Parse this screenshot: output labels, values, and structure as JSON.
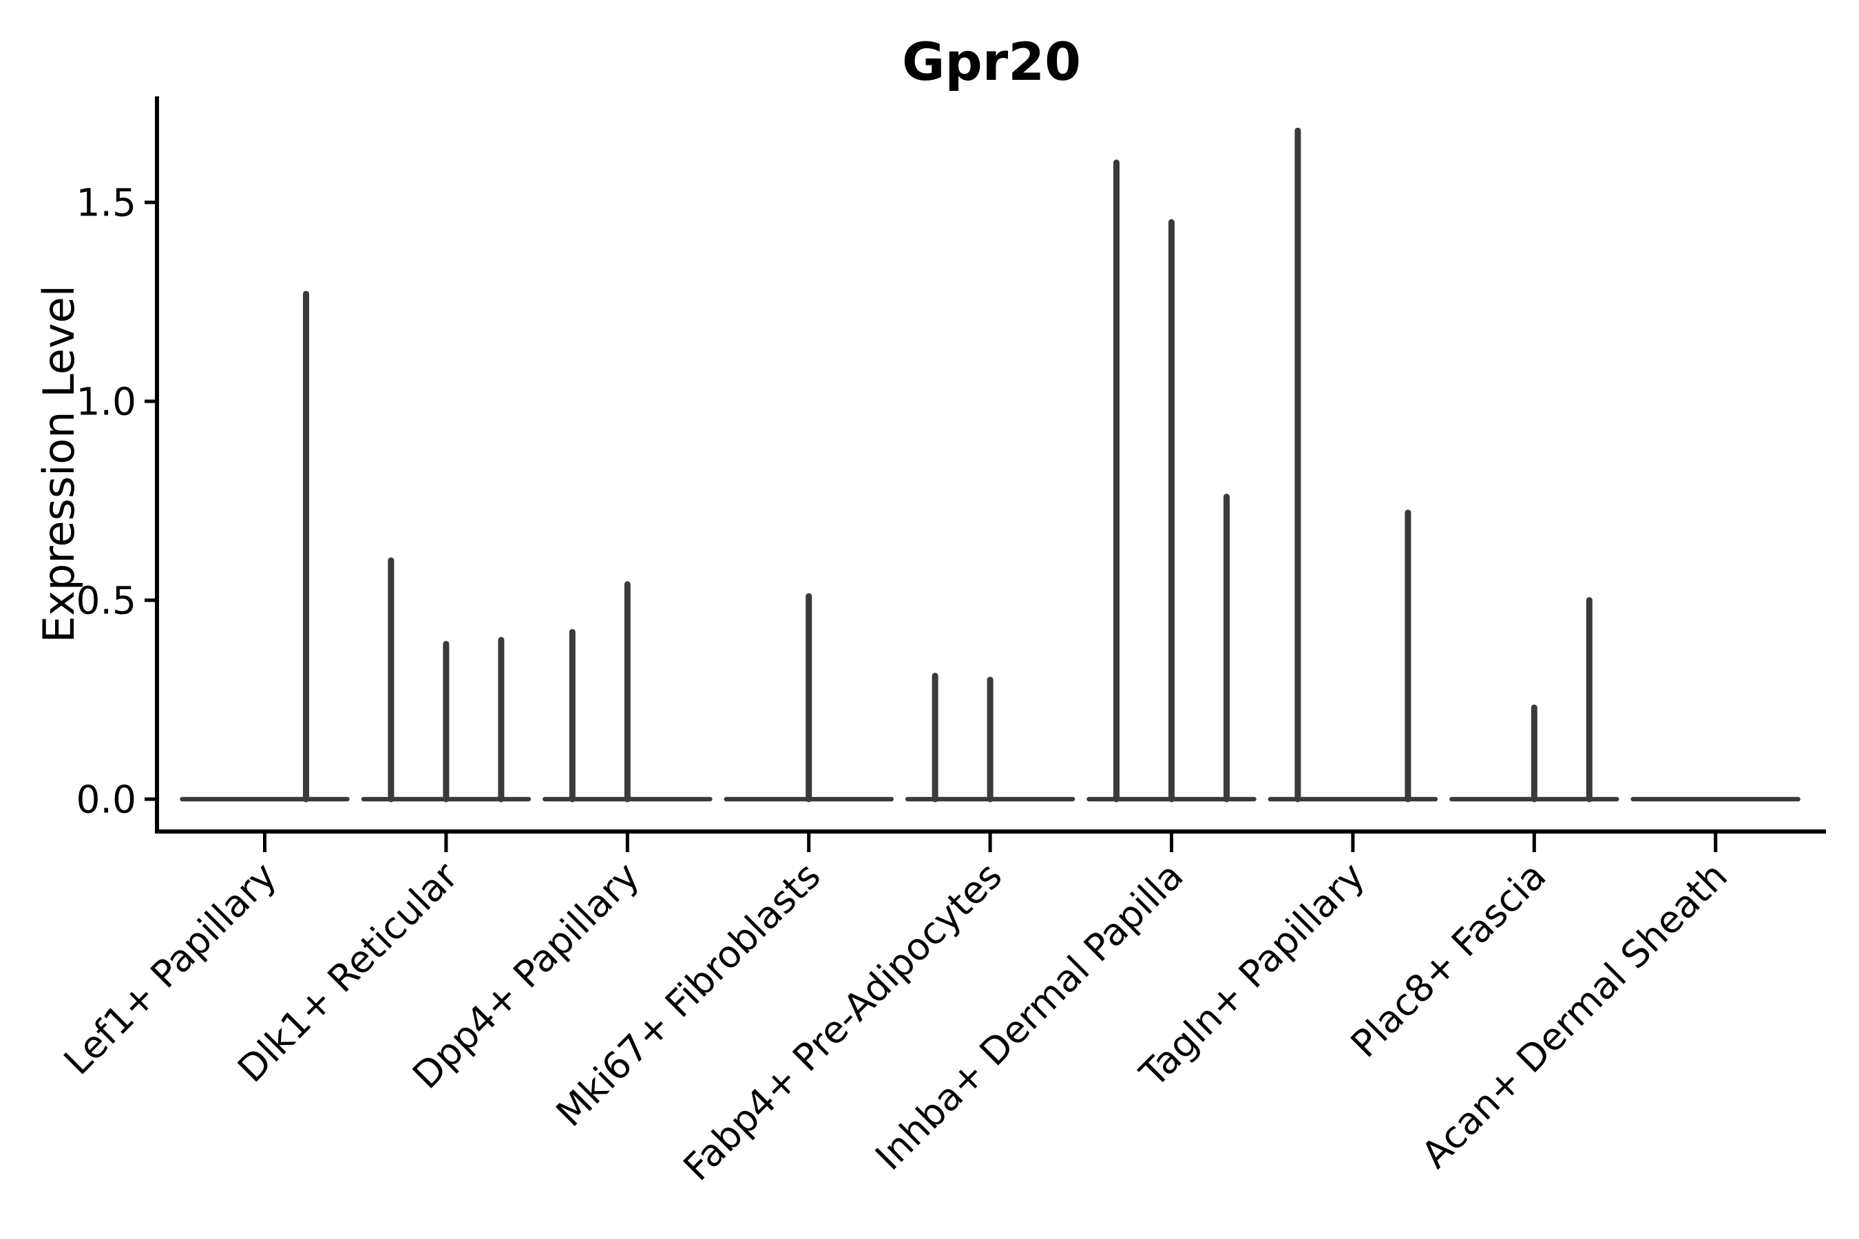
{
  "chart_data": {
    "type": "violin",
    "title": "Gpr20",
    "ylabel": "Expression Level",
    "xlabel": "",
    "ylim": [
      -0.08,
      1.77
    ],
    "grid": false,
    "legend": "none",
    "axis_color": "#000000",
    "violin_line_color": "#3a3a3a",
    "background_color": "#ffffff",
    "yticks": [
      {
        "label": "0.0",
        "value": 0.0
      },
      {
        "label": "0.5",
        "value": 0.5
      },
      {
        "label": "1.0",
        "value": 1.0
      },
      {
        "label": "1.5",
        "value": 1.5
      }
    ],
    "categories": [
      "Lef1+ Papillary",
      "Dlk1+ Reticular",
      "Dpp4+ Papillary",
      "Mki67+ Fibroblasts",
      "Fabp4+ Pre-Adipocytes",
      "Inhba+ Dermal Papilla",
      "Tagln+ Papillary",
      "Plac8+ Fascia",
      "Acan+ Dermal Sheath"
    ],
    "violins": [
      {
        "category": "Lef1+ Papillary",
        "baseline_value": 0.0,
        "spikes": [
          {
            "dx": 60,
            "max": 1.27
          }
        ]
      },
      {
        "category": "Dlk1+ Reticular",
        "baseline_value": 0.0,
        "spikes": [
          {
            "dx": -80,
            "max": 0.6
          },
          {
            "dx": 0,
            "max": 0.39
          },
          {
            "dx": 80,
            "max": 0.4
          }
        ]
      },
      {
        "category": "Dpp4+ Papillary",
        "baseline_value": 0.0,
        "spikes": [
          {
            "dx": -80,
            "max": 0.42
          },
          {
            "dx": 0,
            "max": 0.54
          }
        ]
      },
      {
        "category": "Mki67+ Fibroblasts",
        "baseline_value": 0.0,
        "spikes": [
          {
            "dx": 0,
            "max": 0.51
          }
        ]
      },
      {
        "category": "Fabp4+ Pre-Adipocytes",
        "baseline_value": 0.0,
        "spikes": [
          {
            "dx": -80,
            "max": 0.31
          },
          {
            "dx": 0,
            "max": 0.3
          }
        ]
      },
      {
        "category": "Inhba+ Dermal Papilla",
        "baseline_value": 0.0,
        "spikes": [
          {
            "dx": -80,
            "max": 1.6
          },
          {
            "dx": 0,
            "max": 1.45
          },
          {
            "dx": 80,
            "max": 0.76
          }
        ]
      },
      {
        "category": "Tagln+ Papillary",
        "baseline_value": 0.0,
        "spikes": [
          {
            "dx": -80,
            "max": 1.68
          },
          {
            "dx": 80,
            "max": 0.72
          }
        ]
      },
      {
        "category": "Plac8+ Fascia",
        "baseline_value": 0.0,
        "spikes": [
          {
            "dx": 0,
            "max": 0.23
          },
          {
            "dx": 80,
            "max": 0.5
          }
        ]
      },
      {
        "category": "Acan+ Dermal Sheath",
        "baseline_value": 0.0,
        "spikes": []
      }
    ]
  }
}
